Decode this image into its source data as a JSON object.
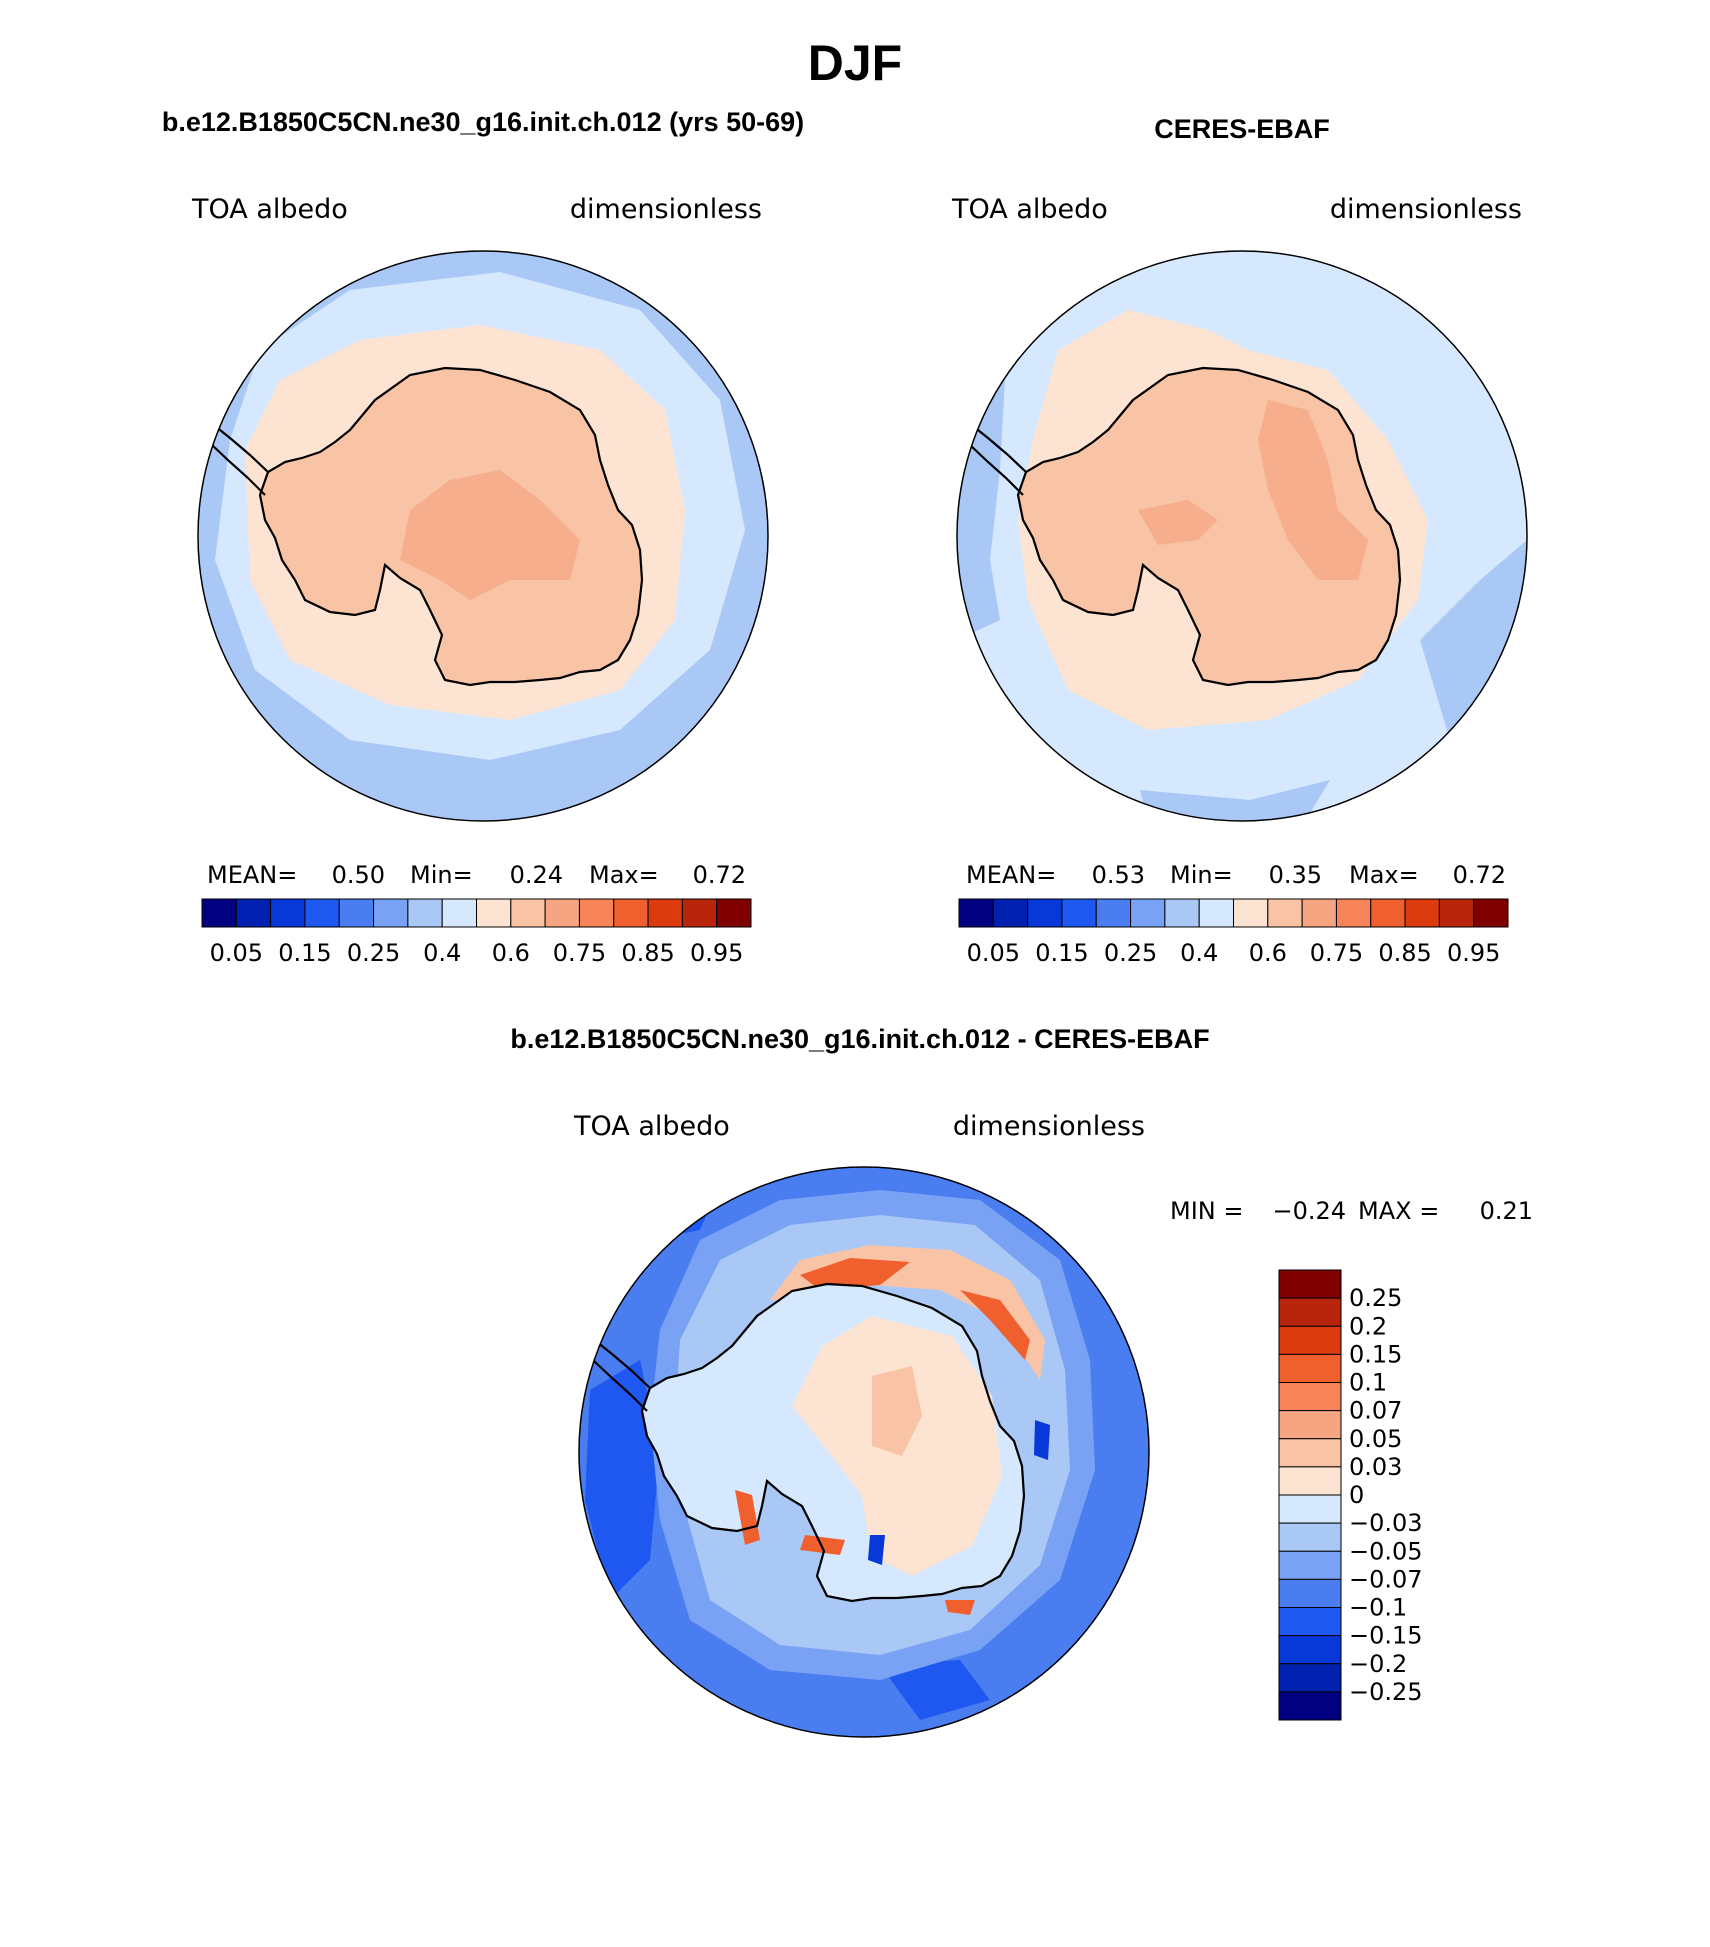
{
  "figure_title": "DJF",
  "panels": [
    {
      "id": "model",
      "title": "b.e12.B1850C5CN.ne30_g16.init.ch.012 (yrs 50-69)",
      "variable": "TOA albedo",
      "units": "dimensionless",
      "stats": {
        "mean_label": "MEAN=",
        "mean": "0.50",
        "min_label": "Min=",
        "min": "0.24",
        "max_label": "Max=",
        "max": "0.72"
      },
      "ocean_color": "#aac8f6",
      "regions": [
        {
          "name": "outer-ring",
          "color": "#aac8f6"
        },
        {
          "name": "sea-ice-zone",
          "color": "#d6e8fd"
        },
        {
          "name": "coastal-ice",
          "color": "#fde4d2"
        },
        {
          "name": "continent",
          "color": "#f9c4a6"
        },
        {
          "name": "east-plateau",
          "color": "#f6ae8c"
        }
      ]
    },
    {
      "id": "obs",
      "title": "CERES-EBAF",
      "variable": "TOA albedo",
      "units": "dimensionless",
      "stats": {
        "mean_label": "MEAN=",
        "mean": "0.53",
        "min_label": "Min=",
        "min": "0.35",
        "max_label": "Max=",
        "max": "0.72"
      },
      "ocean_color": "#d6e8fd",
      "regions": [
        {
          "name": "outer-ring",
          "color": "#d6e8fd"
        },
        {
          "name": "sea-ice-zone",
          "color": "#fde4d2"
        },
        {
          "name": "continent",
          "color": "#f9c4a6"
        },
        {
          "name": "east-plateau",
          "color": "#f6ae8c"
        }
      ]
    }
  ],
  "abs_colorbar": {
    "colors": [
      "#000080",
      "#0020b0",
      "#0838d8",
      "#1e58f0",
      "#4a7ef0",
      "#7aa2f4",
      "#aac8f6",
      "#d6e8fd",
      "#fde4d2",
      "#f9c4a6",
      "#f6a582",
      "#f68458",
      "#f0602e",
      "#dc3b0d",
      "#b8250a",
      "#800000"
    ],
    "ticks": [
      "0.05",
      "0.15",
      "0.25",
      "0.4",
      "0.6",
      "0.75",
      "0.85",
      "0.95"
    ]
  },
  "diff_panel": {
    "title": "b.e12.B1850C5CN.ne30_g16.init.ch.012 - CERES-EBAF",
    "variable": "TOA albedo",
    "units": "dimensionless",
    "stats": {
      "min_label": "MIN =",
      "min": "−0.24",
      "max_label": "MAX =",
      "max": "0.21"
    },
    "colorbar": {
      "colors": [
        "#800000",
        "#b8250a",
        "#dc3b0d",
        "#f0602e",
        "#f68458",
        "#f6a582",
        "#f9c4a6",
        "#fde4d2",
        "#d6e8fd",
        "#aac8f6",
        "#7aa2f4",
        "#4a7ef0",
        "#1e58f0",
        "#0838d8",
        "#0020b0",
        "#000080"
      ],
      "ticks": [
        "0.25",
        "0.2",
        "0.15",
        "0.1",
        "0.07",
        "0.05",
        "0.03",
        "0",
        "−0.03",
        "−0.05",
        "−0.07",
        "−0.1",
        "−0.15",
        "−0.2",
        "−0.25"
      ]
    }
  }
}
